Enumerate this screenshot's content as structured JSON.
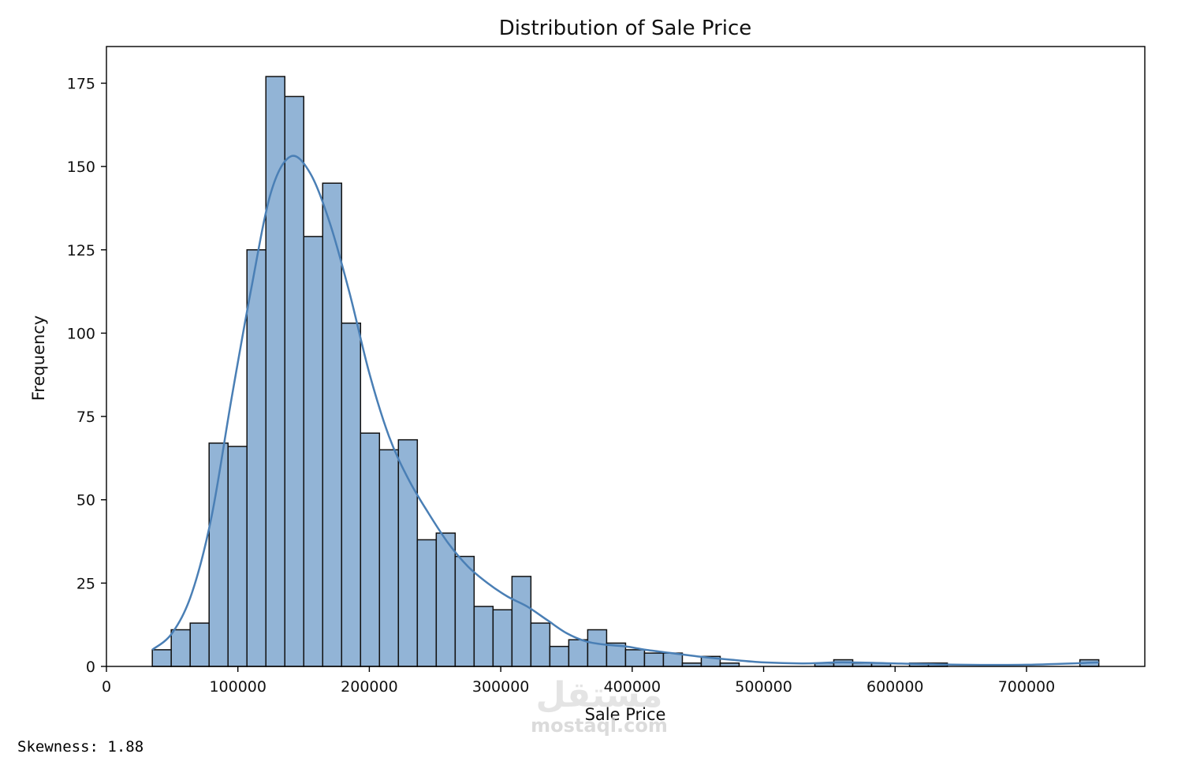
{
  "chart_data": {
    "type": "bar",
    "subtype": "histogram",
    "title": "Distribution of Sale Price",
    "xlabel": "Sale Price",
    "ylabel": "Frequency",
    "xlim": [
      0,
      790000
    ],
    "ylim": [
      0,
      186
    ],
    "x_ticks": [
      0,
      100000,
      200000,
      300000,
      400000,
      500000,
      600000,
      700000
    ],
    "x_tick_labels": [
      "0",
      "100000",
      "200000",
      "300000",
      "400000",
      "500000",
      "600000",
      "700000"
    ],
    "y_ticks": [
      0,
      25,
      50,
      75,
      100,
      125,
      150,
      175
    ],
    "y_tick_labels": [
      "0",
      "25",
      "50",
      "75",
      "100",
      "125",
      "150",
      "175"
    ],
    "bin_start": 34900,
    "bin_width": 14402,
    "counts": [
      5,
      11,
      13,
      67,
      66,
      125,
      177,
      171,
      129,
      145,
      103,
      70,
      65,
      68,
      38,
      40,
      33,
      18,
      17,
      27,
      13,
      6,
      8,
      11,
      7,
      5,
      4,
      4,
      1,
      3,
      1,
      0,
      0,
      0,
      0,
      1,
      2,
      1,
      1,
      0,
      1,
      1,
      0,
      0,
      0,
      0,
      0,
      0,
      0,
      2
    ],
    "kde": {
      "x": [
        34900,
        50000,
        65000,
        80000,
        95000,
        110000,
        125000,
        140000,
        155000,
        170000,
        185000,
        200000,
        215000,
        230000,
        245000,
        260000,
        275000,
        290000,
        305000,
        320000,
        335000,
        350000,
        365000,
        380000,
        395000,
        410000,
        430000,
        450000,
        475000,
        500000,
        530000,
        560000,
        600000,
        650000,
        700000,
        755000
      ],
      "y": [
        5,
        10,
        22,
        45,
        80,
        113,
        142,
        153,
        148,
        133,
        112,
        88,
        69,
        56,
        46,
        37,
        30,
        25,
        21,
        18,
        14,
        10,
        7.5,
        6.5,
        6,
        5,
        4,
        3,
        2,
        1.2,
        0.9,
        1.2,
        0.9,
        0.5,
        0.5,
        1.2
      ]
    },
    "bar_color": "#92b4d6",
    "line_color": "#4a7fb5",
    "grid": false
  },
  "output": {
    "text": "Skewness: 1.88"
  },
  "watermark": {
    "logo_text": "مستقل",
    "site_text": "mostaql.com"
  }
}
